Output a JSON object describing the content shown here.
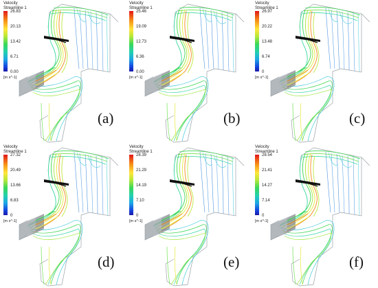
{
  "legend": {
    "title_line1": "Velocity",
    "title_line2": "Streamline 1",
    "unit": "[m s^-1]"
  },
  "panels": [
    {
      "label": "(a)",
      "ticks": [
        "26.83",
        "20.13",
        "13.42",
        "6.71",
        "0.00"
      ]
    },
    {
      "label": "(b)",
      "ticks": [
        "25.46",
        "19.09",
        "12.73",
        "6.36",
        "0.00"
      ]
    },
    {
      "label": "(c)",
      "ticks": [
        "26.97",
        "20.22",
        "13.48",
        "6.74",
        "0"
      ]
    },
    {
      "label": "(d)",
      "ticks": [
        "27.32",
        "20.49",
        "13.66",
        "6.83",
        "0"
      ]
    },
    {
      "label": "(e)",
      "ticks": [
        "28.39",
        "21.29",
        "14.19",
        "7.10",
        "0"
      ]
    },
    {
      "label": "(f)",
      "ticks": [
        "28.54",
        "21.41",
        "14.27",
        "7.14",
        "0"
      ]
    }
  ],
  "colors": {
    "duct_blue": "#2a7fd8",
    "duct_cyan": "#38c6d8",
    "streamline_green": "#3bd651",
    "streamline_yellow": "#e6e83a",
    "hot_orange": "#f28a1c",
    "wireframe": "#9aa0a6"
  }
}
